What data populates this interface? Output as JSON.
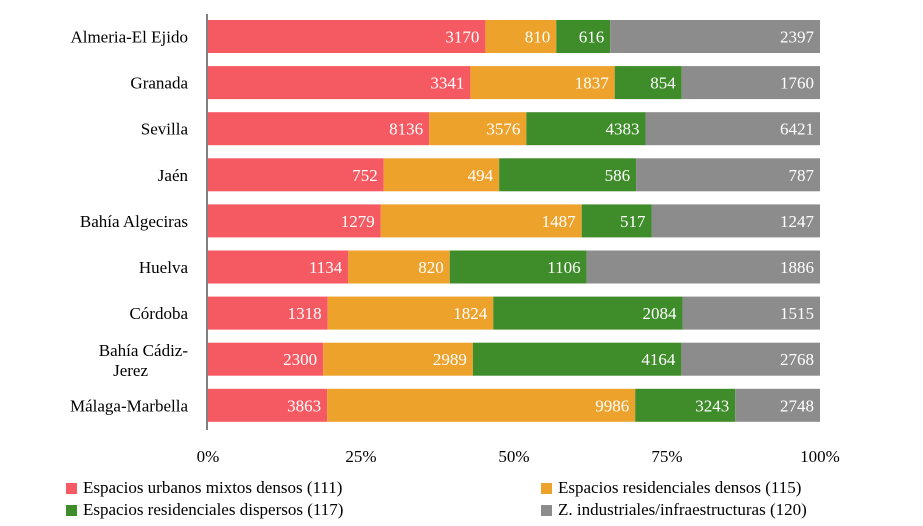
{
  "chart_data": {
    "type": "bar",
    "orientation": "horizontal",
    "stacked": "percent",
    "categories": [
      "Almeria-El Ejido",
      "Granada",
      "Sevilla",
      "Jaén",
      "Bahía Algeciras",
      "Huelva",
      "Córdoba",
      "Bahía Cádiz-Jerez",
      "Málaga-Marbella"
    ],
    "series": [
      {
        "name": "Espacios urbanos mixtos densos (111)",
        "color": "#f55a63",
        "values": [
          3170,
          3341,
          8136,
          752,
          1279,
          1134,
          1318,
          2300,
          3863
        ]
      },
      {
        "name": "Espacios residenciales densos (115)",
        "color": "#eda22c",
        "values": [
          810,
          1837,
          3576,
          494,
          1487,
          820,
          1824,
          2989,
          9986
        ]
      },
      {
        "name": "Espacios residenciales dispersos (117)",
        "color": "#3f8c2a",
        "values": [
          616,
          854,
          4383,
          586,
          517,
          1106,
          2084,
          4164,
          3243
        ]
      },
      {
        "name": "Z. industriales/infraestructuras (120)",
        "color": "#8c8c8c",
        "values": [
          2397,
          1760,
          6421,
          787,
          1247,
          1886,
          1515,
          2768,
          2748
        ]
      }
    ],
    "x_ticks": [
      "0%",
      "25%",
      "50%",
      "75%",
      "100%"
    ],
    "xlim": [
      0,
      100
    ],
    "grid": false,
    "legend_position": "bottom"
  }
}
